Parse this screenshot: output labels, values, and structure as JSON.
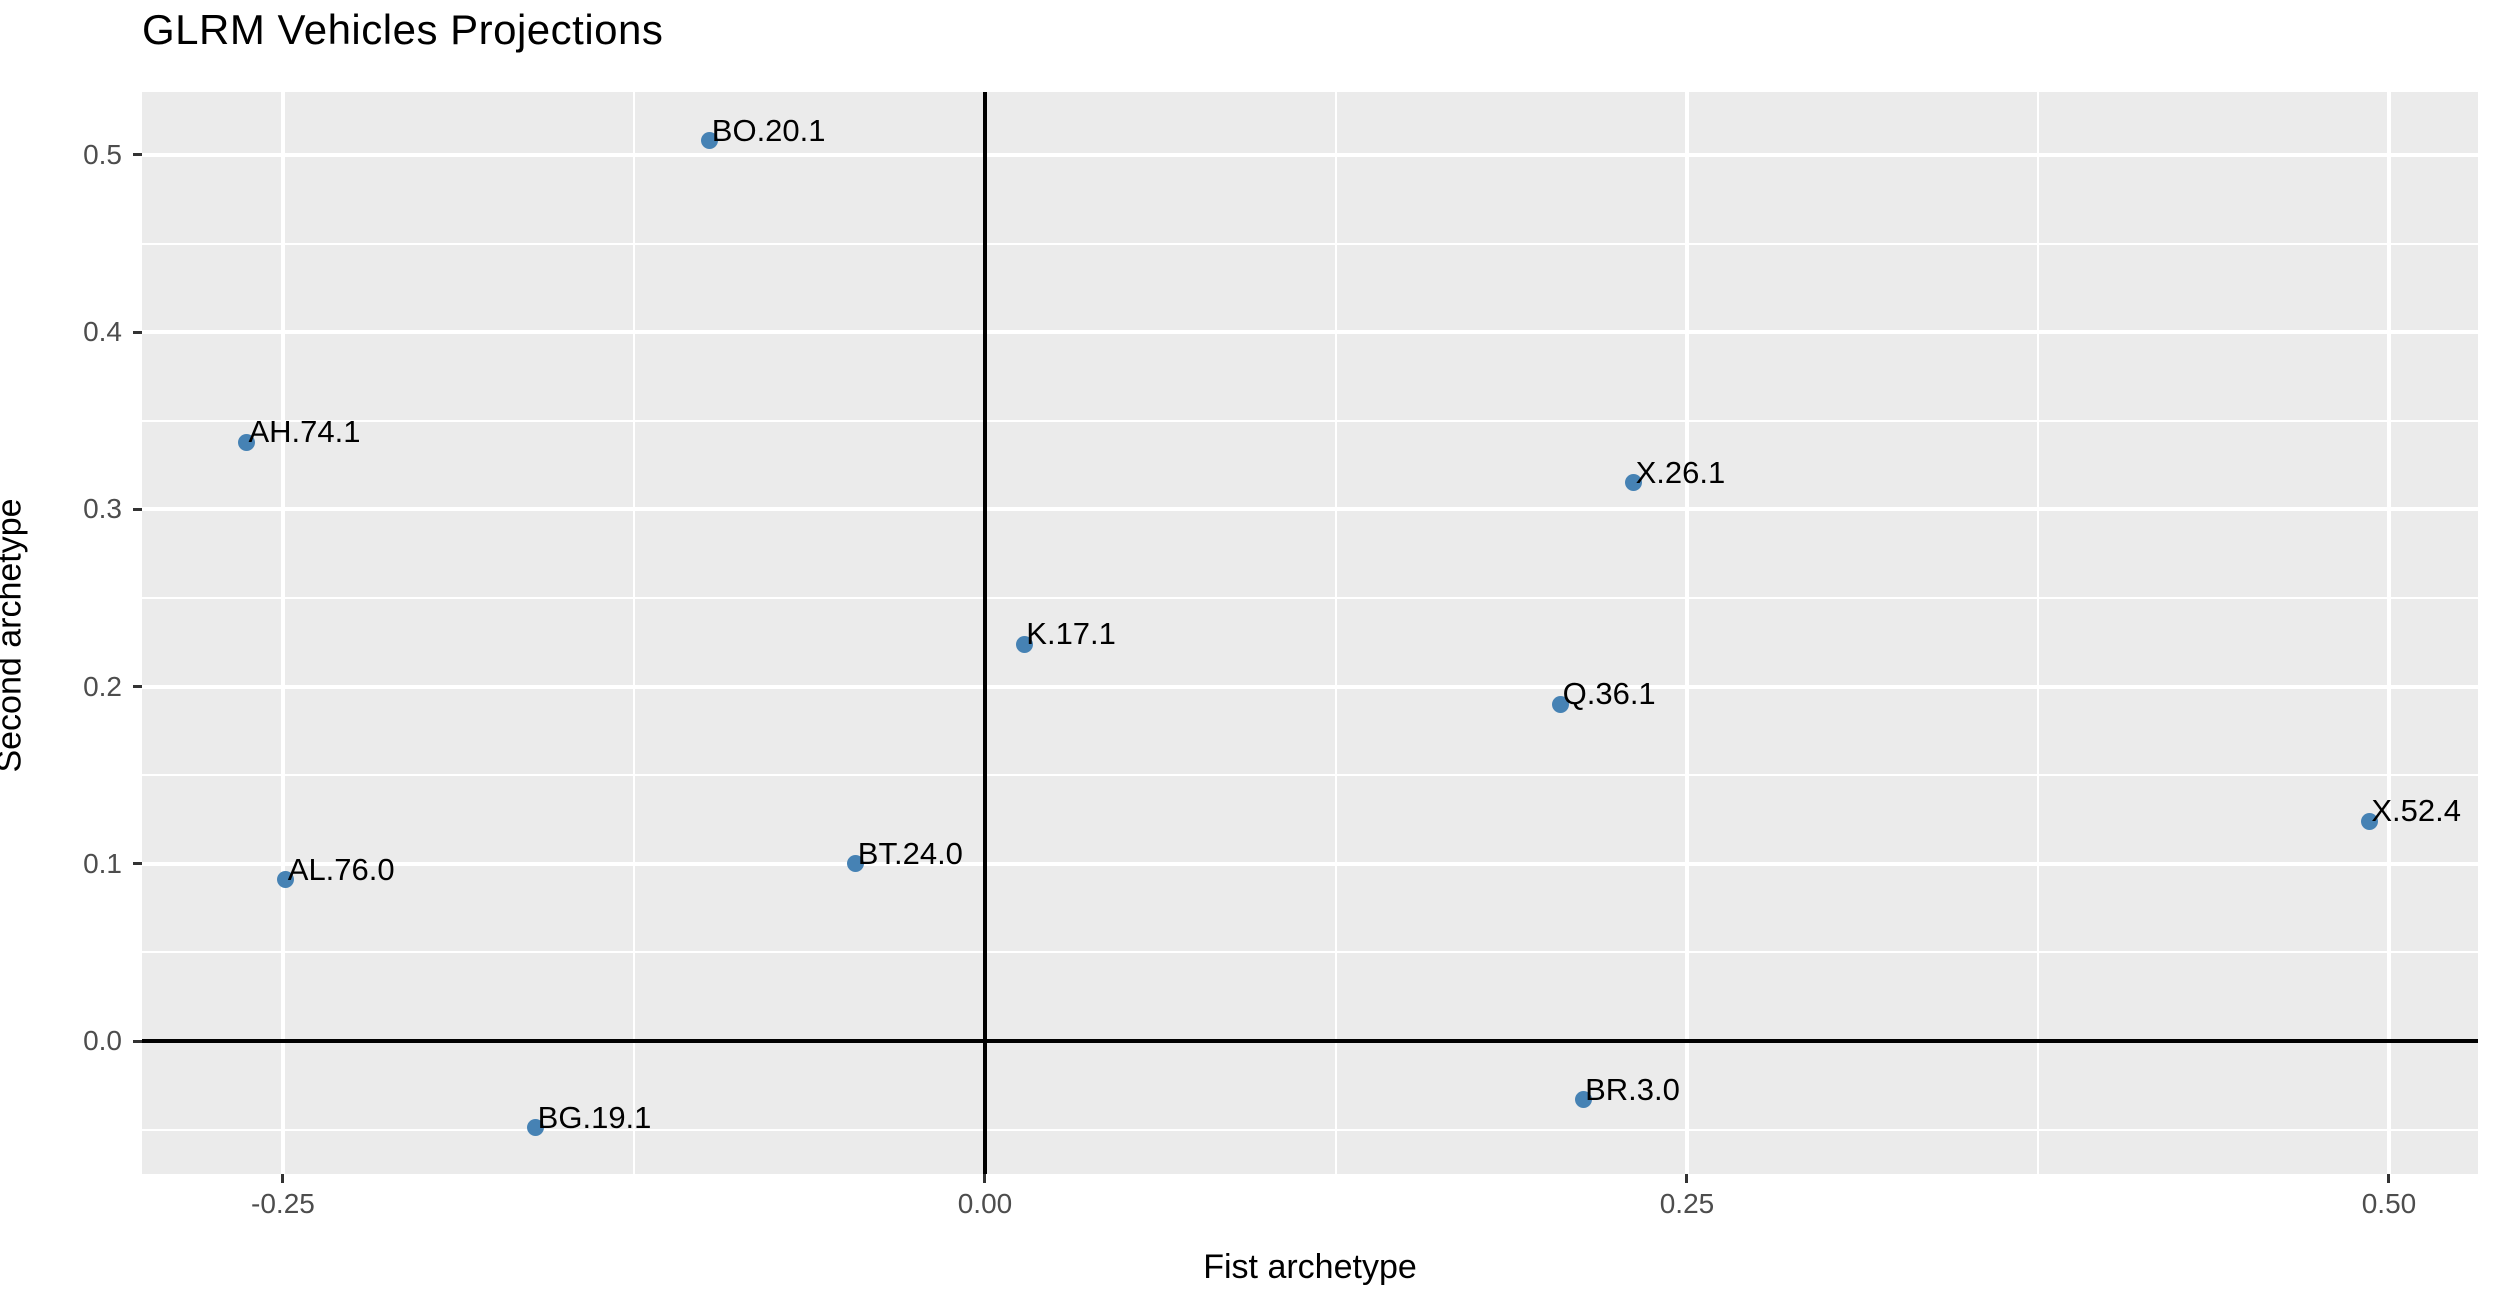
{
  "chart_data": {
    "type": "scatter",
    "title": "GLRM Vehicles Projections",
    "xlabel": "Fist archetype",
    "ylabel": "Second archetype",
    "xlim": [
      -0.3002,
      0.5317
    ],
    "ylim": [
      -0.075,
      0.5355
    ],
    "x_ticks": [
      {
        "value": -0.25,
        "label": "-0.25"
      },
      {
        "value": 0.0,
        "label": "0.00"
      },
      {
        "value": 0.25,
        "label": "0.25"
      },
      {
        "value": 0.5,
        "label": "0.50"
      }
    ],
    "y_ticks": [
      {
        "value": 0.0,
        "label": "0.0"
      },
      {
        "value": 0.1,
        "label": "0.1"
      },
      {
        "value": 0.2,
        "label": "0.2"
      },
      {
        "value": 0.3,
        "label": "0.3"
      },
      {
        "value": 0.4,
        "label": "0.4"
      },
      {
        "value": 0.5,
        "label": "0.5"
      }
    ],
    "x_minor": [
      -0.125,
      0.125,
      0.375
    ],
    "y_minor": [
      -0.05,
      0.05,
      0.15,
      0.25,
      0.35,
      0.45
    ],
    "grid": {
      "major": true,
      "minor": true
    },
    "zero_lines": {
      "x": 0,
      "y": 0
    },
    "legend_position": "none",
    "points": [
      {
        "label": "BO.20.1",
        "x": -0.098,
        "y": 0.508
      },
      {
        "label": "AH.74.1",
        "x": -0.263,
        "y": 0.338
      },
      {
        "label": "X.26.1",
        "x": 0.231,
        "y": 0.315
      },
      {
        "label": "K.17.1",
        "x": 0.014,
        "y": 0.224
      },
      {
        "label": "Q.36.1",
        "x": 0.205,
        "y": 0.19
      },
      {
        "label": "X.52.4",
        "x": 0.493,
        "y": 0.124
      },
      {
        "label": "BT.24.0",
        "x": -0.046,
        "y": 0.1
      },
      {
        "label": "AL.76.0",
        "x": -0.249,
        "y": 0.091
      },
      {
        "label": "BG.19.1",
        "x": -0.16,
        "y": -0.049
      },
      {
        "label": "BR.3.0",
        "x": 0.213,
        "y": -0.033
      }
    ],
    "colors": {
      "point": "#4682B4",
      "panel_background": "#EBEBEB",
      "gridline": "#FFFFFF",
      "zero_line": "#000000",
      "tick_text": "#4D4D4D",
      "title_text": "#000000"
    }
  }
}
